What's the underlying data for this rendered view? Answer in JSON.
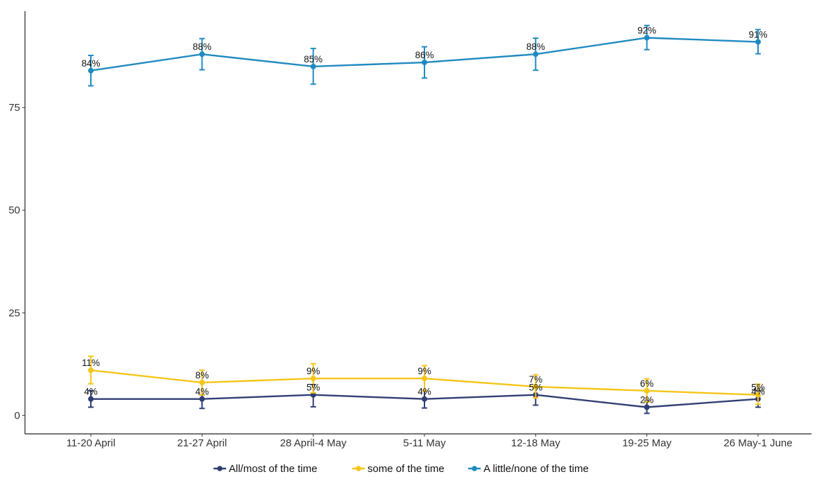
{
  "chart_data": {
    "type": "line",
    "title": "",
    "xlabel": "",
    "ylabel": "",
    "categories": [
      "11-20 April",
      "21-27 April",
      "28 April-4 May",
      "5-11 May",
      "12-18 May",
      "19-25 May",
      "26 May-1 June"
    ],
    "y_ticks": [
      0,
      25,
      50,
      75
    ],
    "ylim": [
      -4.5,
      98.5
    ],
    "grid": false,
    "legend_position": "bottom",
    "error_bars": true,
    "series": [
      {
        "name": "All/most of the time",
        "color": "#2f3d73",
        "values": [
          4,
          4,
          5,
          4,
          5,
          2,
          4
        ],
        "error_low": [
          2.0,
          1.7,
          2.1,
          1.8,
          2.5,
          0.5,
          2.0
        ],
        "error_high": [
          6.0,
          5.0,
          7.5,
          6.0,
          7.0,
          3.5,
          6.0
        ],
        "labels": [
          "4%",
          "4%",
          "5%",
          "4%",
          "5%",
          "2%",
          "4%"
        ]
      },
      {
        "name": "some of the time",
        "color": "#f5c518",
        "values": [
          11,
          8,
          9,
          9,
          7,
          6,
          5
        ],
        "error_low": [
          7.7,
          5.0,
          5.5,
          6.0,
          4.3,
          3.3,
          2.7
        ],
        "error_high": [
          14.4,
          11.0,
          12.6,
          12.1,
          9.9,
          8.9,
          7.6
        ],
        "labels": [
          "11%",
          "8%",
          "9%",
          "9%",
          "7%",
          "6%",
          "5%"
        ]
      },
      {
        "name": "A little/none of the time",
        "color": "#1f8ac0",
        "values": [
          84,
          88,
          85,
          86,
          88,
          92,
          91
        ],
        "error_low": [
          80.3,
          84.2,
          80.7,
          82.2,
          84.1,
          89.1,
          88.1
        ],
        "error_high": [
          87.7,
          91.8,
          89.4,
          89.8,
          91.9,
          95.0,
          94.0
        ],
        "labels": [
          "84%",
          "88%",
          "85%",
          "86%",
          "88%",
          "92%",
          "91%"
        ]
      }
    ]
  }
}
